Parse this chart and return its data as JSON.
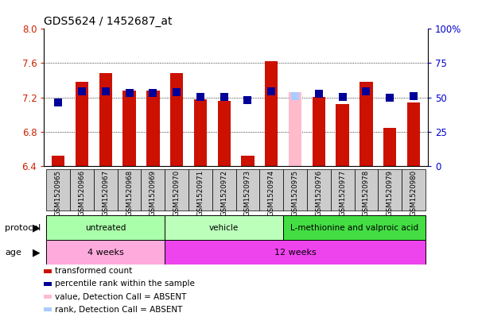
{
  "title": "GDS5624 / 1452687_at",
  "samples": [
    "GSM1520965",
    "GSM1520966",
    "GSM1520967",
    "GSM1520968",
    "GSM1520969",
    "GSM1520970",
    "GSM1520971",
    "GSM1520972",
    "GSM1520973",
    "GSM1520974",
    "GSM1520975",
    "GSM1520976",
    "GSM1520977",
    "GSM1520978",
    "GSM1520979",
    "GSM1520980"
  ],
  "red_values": [
    6.52,
    7.38,
    7.48,
    7.28,
    7.28,
    7.48,
    7.18,
    7.16,
    6.52,
    7.62,
    7.26,
    7.21,
    7.12,
    7.38,
    6.85,
    7.14
  ],
  "blue_values": [
    7.14,
    7.27,
    7.27,
    7.25,
    7.25,
    7.26,
    7.21,
    7.21,
    7.17,
    7.27,
    7.22,
    7.24,
    7.21,
    7.27,
    7.2,
    7.22
  ],
  "absent_red": [
    false,
    false,
    false,
    false,
    false,
    false,
    false,
    false,
    false,
    false,
    true,
    false,
    false,
    false,
    false,
    false
  ],
  "absent_blue": [
    false,
    false,
    false,
    false,
    false,
    false,
    false,
    false,
    false,
    false,
    true,
    false,
    false,
    false,
    false,
    false
  ],
  "ymin": 6.4,
  "ymax": 8.0,
  "yticks": [
    6.4,
    6.8,
    7.2,
    7.6,
    8.0
  ],
  "right_yticks": [
    0,
    25,
    50,
    75,
    100
  ],
  "protocol_groups": [
    {
      "label": "untreated",
      "start": 0,
      "end": 4,
      "color": "#aaffaa"
    },
    {
      "label": "vehicle",
      "start": 5,
      "end": 9,
      "color": "#bbffbb"
    },
    {
      "label": "L-methionine and valproic acid",
      "start": 10,
      "end": 15,
      "color": "#44dd44"
    }
  ],
  "age_groups": [
    {
      "label": "4 weeks",
      "start": 0,
      "end": 4,
      "color": "#ffaadd"
    },
    {
      "label": "12 weeks",
      "start": 5,
      "end": 15,
      "color": "#ee44ee"
    }
  ],
  "bar_color": "#cc1100",
  "bar_color_absent": "#ffbbcc",
  "blue_color": "#000099",
  "blue_color_absent": "#aaccff",
  "bar_width": 0.55,
  "left_label_color": "#cc2200",
  "right_label_color": "#0000cc",
  "xticklabel_bg": "#cccccc",
  "legend_items": [
    {
      "color": "#cc1100",
      "label": "transformed count"
    },
    {
      "color": "#000099",
      "label": "percentile rank within the sample"
    },
    {
      "color": "#ffbbcc",
      "label": "value, Detection Call = ABSENT"
    },
    {
      "color": "#aaccff",
      "label": "rank, Detection Call = ABSENT"
    }
  ]
}
